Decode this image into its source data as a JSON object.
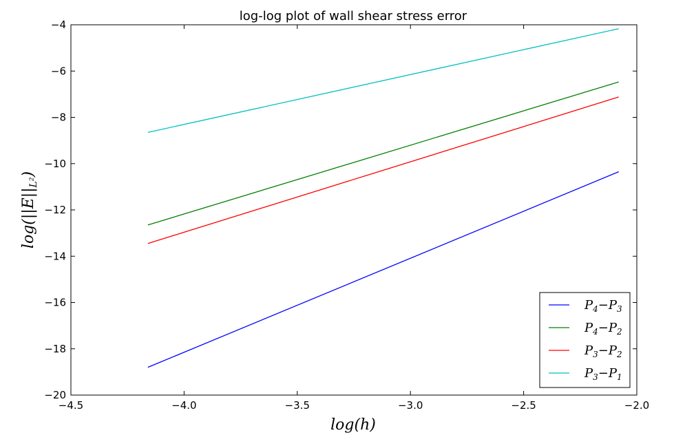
{
  "chart_data": {
    "type": "line",
    "title": "log-log plot of wall shear stress error",
    "xlabel": "log(h)",
    "ylabel": "log(||E||L²)",
    "xlim": [
      -4.5,
      -2.0
    ],
    "ylim": [
      -20,
      -4
    ],
    "xticks": [
      -4.5,
      -4.0,
      -3.5,
      -3.0,
      -2.5,
      -2.0
    ],
    "xtick_labels": [
      "−4.5",
      "−4.0",
      "−3.5",
      "−3.0",
      "−2.5",
      "−2.0"
    ],
    "yticks": [
      -20,
      -18,
      -16,
      -14,
      -12,
      -10,
      -8,
      -6,
      -4
    ],
    "ytick_labels": [
      "−20",
      "−18",
      "−16",
      "−14",
      "−12",
      "−10",
      "−8",
      "−6",
      "−4"
    ],
    "grid": false,
    "legend_position": "lower-right",
    "series": [
      {
        "name": "P4−P3",
        "sub_a": "4",
        "sub_b": "3",
        "color": "#0000ff",
        "x": [
          -4.16,
          -2.08
        ],
        "y": [
          -18.8,
          -10.35
        ]
      },
      {
        "name": "P4−P2",
        "sub_a": "4",
        "sub_b": "2",
        "color": "#008000",
        "x": [
          -4.16,
          -2.08
        ],
        "y": [
          -12.65,
          -6.47
        ]
      },
      {
        "name": "P3−P2",
        "sub_a": "3",
        "sub_b": "2",
        "color": "#ff0000",
        "x": [
          -4.16,
          -2.08
        ],
        "y": [
          -13.45,
          -7.12
        ]
      },
      {
        "name": "P3−P1",
        "sub_a": "3",
        "sub_b": "1",
        "color": "#00bfbf",
        "x": [
          -4.16,
          -2.08
        ],
        "y": [
          -8.65,
          -4.17
        ]
      }
    ]
  }
}
